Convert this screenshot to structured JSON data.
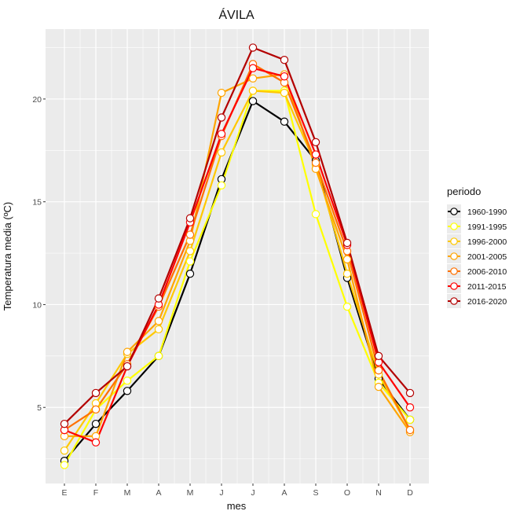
{
  "chart_data": {
    "type": "line",
    "title": "ÁVILA",
    "xlabel": "mes",
    "ylabel": "Temperatura media (ºC)",
    "categories": [
      "E",
      "F",
      "M",
      "A",
      "M",
      "J",
      "J",
      "A",
      "S",
      "O",
      "N",
      "D"
    ],
    "ylim": [
      1.3,
      23.4
    ],
    "yticks": [
      5,
      10,
      15,
      20
    ],
    "grid": true,
    "legend": {
      "title": "periodo",
      "position": "right"
    },
    "series": [
      {
        "name": "1960-1990",
        "color": "#000000",
        "values": [
          2.4,
          4.2,
          5.8,
          7.5,
          11.5,
          16.1,
          19.9,
          18.9,
          17.0,
          11.3,
          6.4,
          4.4
        ]
      },
      {
        "name": "1991-1995",
        "color": "#ffff00",
        "values": [
          2.2,
          4.9,
          6.3,
          7.5,
          12.1,
          15.8,
          20.4,
          20.4,
          14.4,
          9.9,
          6.2,
          4.4
        ]
      },
      {
        "name": "1996-2000",
        "color": "#ffc800",
        "values": [
          2.9,
          5.2,
          7.6,
          8.8,
          12.6,
          17.4,
          20.4,
          20.3,
          16.8,
          11.5,
          6.6,
          3.9
        ]
      },
      {
        "name": "2001-2005",
        "color": "#ffa500",
        "values": [
          3.6,
          3.6,
          7.7,
          9.2,
          13.1,
          20.3,
          21.0,
          21.2,
          16.6,
          12.2,
          6.0,
          3.8
        ]
      },
      {
        "name": "2006-2010",
        "color": "#ff7000",
        "values": [
          3.9,
          4.9,
          7.1,
          9.9,
          13.4,
          18.2,
          21.7,
          20.8,
          16.9,
          12.6,
          6.8,
          3.9
        ]
      },
      {
        "name": "2011-2015",
        "color": "#ff0000",
        "values": [
          3.9,
          3.3,
          7.0,
          10.0,
          14.0,
          18.3,
          21.5,
          21.1,
          17.3,
          12.9,
          7.2,
          5.0
        ]
      },
      {
        "name": "2016-2020",
        "color": "#b30000",
        "values": [
          4.2,
          5.7,
          7.0,
          10.3,
          14.2,
          19.1,
          22.5,
          21.9,
          17.9,
          13.0,
          7.5,
          5.7
        ]
      }
    ]
  }
}
